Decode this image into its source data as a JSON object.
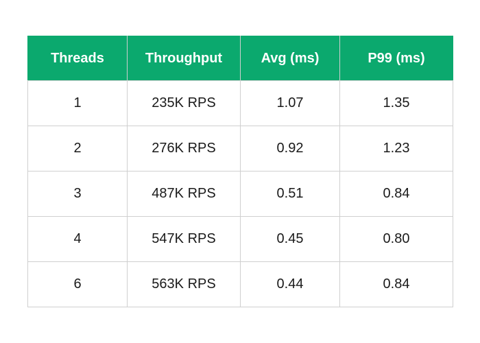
{
  "chart_data": {
    "type": "table",
    "columns": [
      "Threads",
      "Throughput",
      "Avg (ms)",
      "P99 (ms)"
    ],
    "rows": [
      [
        "1",
        "235K RPS",
        "1.07",
        "1.35"
      ],
      [
        "2",
        "276K RPS",
        "0.92",
        "1.23"
      ],
      [
        "3",
        "487K RPS",
        "0.51",
        "0.84"
      ],
      [
        "4",
        "547K RPS",
        "0.45",
        "0.80"
      ],
      [
        "6",
        "563K RPS",
        "0.44",
        "0.84"
      ]
    ],
    "header_color": "#0ba96e",
    "header_text_color": "#ffffff",
    "border_color": "#cfcfcf"
  }
}
